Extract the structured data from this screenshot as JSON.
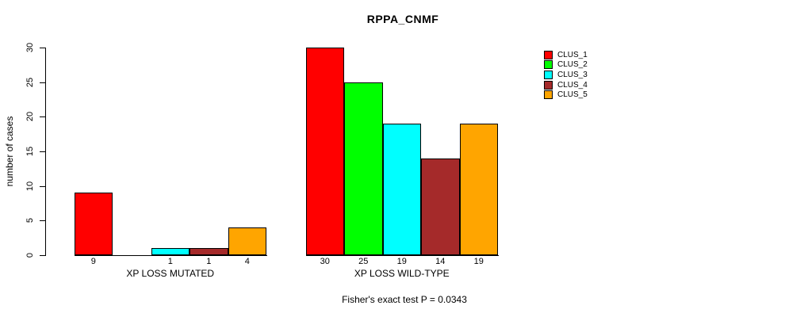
{
  "chart_data": {
    "type": "bar",
    "title": "RPPA_CNMF",
    "ylabel": "number of cases",
    "xlabel": "",
    "annotation": "Fisher's exact test P = 0.0343",
    "ylim": [
      0,
      30
    ],
    "yticks": [
      0,
      5,
      10,
      15,
      20,
      25,
      30
    ],
    "grid": false,
    "legend_position": "top-right",
    "categories": [
      "XP LOSS MUTATED",
      "XP LOSS WILD-TYPE"
    ],
    "series": [
      {
        "name": "CLUS_1",
        "color": "#ff0000",
        "values": [
          9,
          30
        ]
      },
      {
        "name": "CLUS_2",
        "color": "#00ff00",
        "values": [
          0,
          25
        ]
      },
      {
        "name": "CLUS_3",
        "color": "#00ffff",
        "values": [
          1,
          19
        ]
      },
      {
        "name": "CLUS_4",
        "color": "#a52a2a",
        "values": [
          1,
          14
        ]
      },
      {
        "name": "CLUS_5",
        "color": "#ffa500",
        "values": [
          4,
          19
        ]
      }
    ],
    "bar_value_labels": [
      [
        "9",
        "",
        "1",
        "1",
        "4"
      ],
      [
        "30",
        "25",
        "19",
        "14",
        "19"
      ]
    ]
  },
  "legend": {
    "items": [
      {
        "label": "CLUS_1",
        "color": "#ff0000"
      },
      {
        "label": "CLUS_2",
        "color": "#00ff00"
      },
      {
        "label": "CLUS_3",
        "color": "#00ffff"
      },
      {
        "label": "CLUS_4",
        "color": "#a52a2a"
      },
      {
        "label": "CLUS_5",
        "color": "#ffa500"
      }
    ]
  }
}
